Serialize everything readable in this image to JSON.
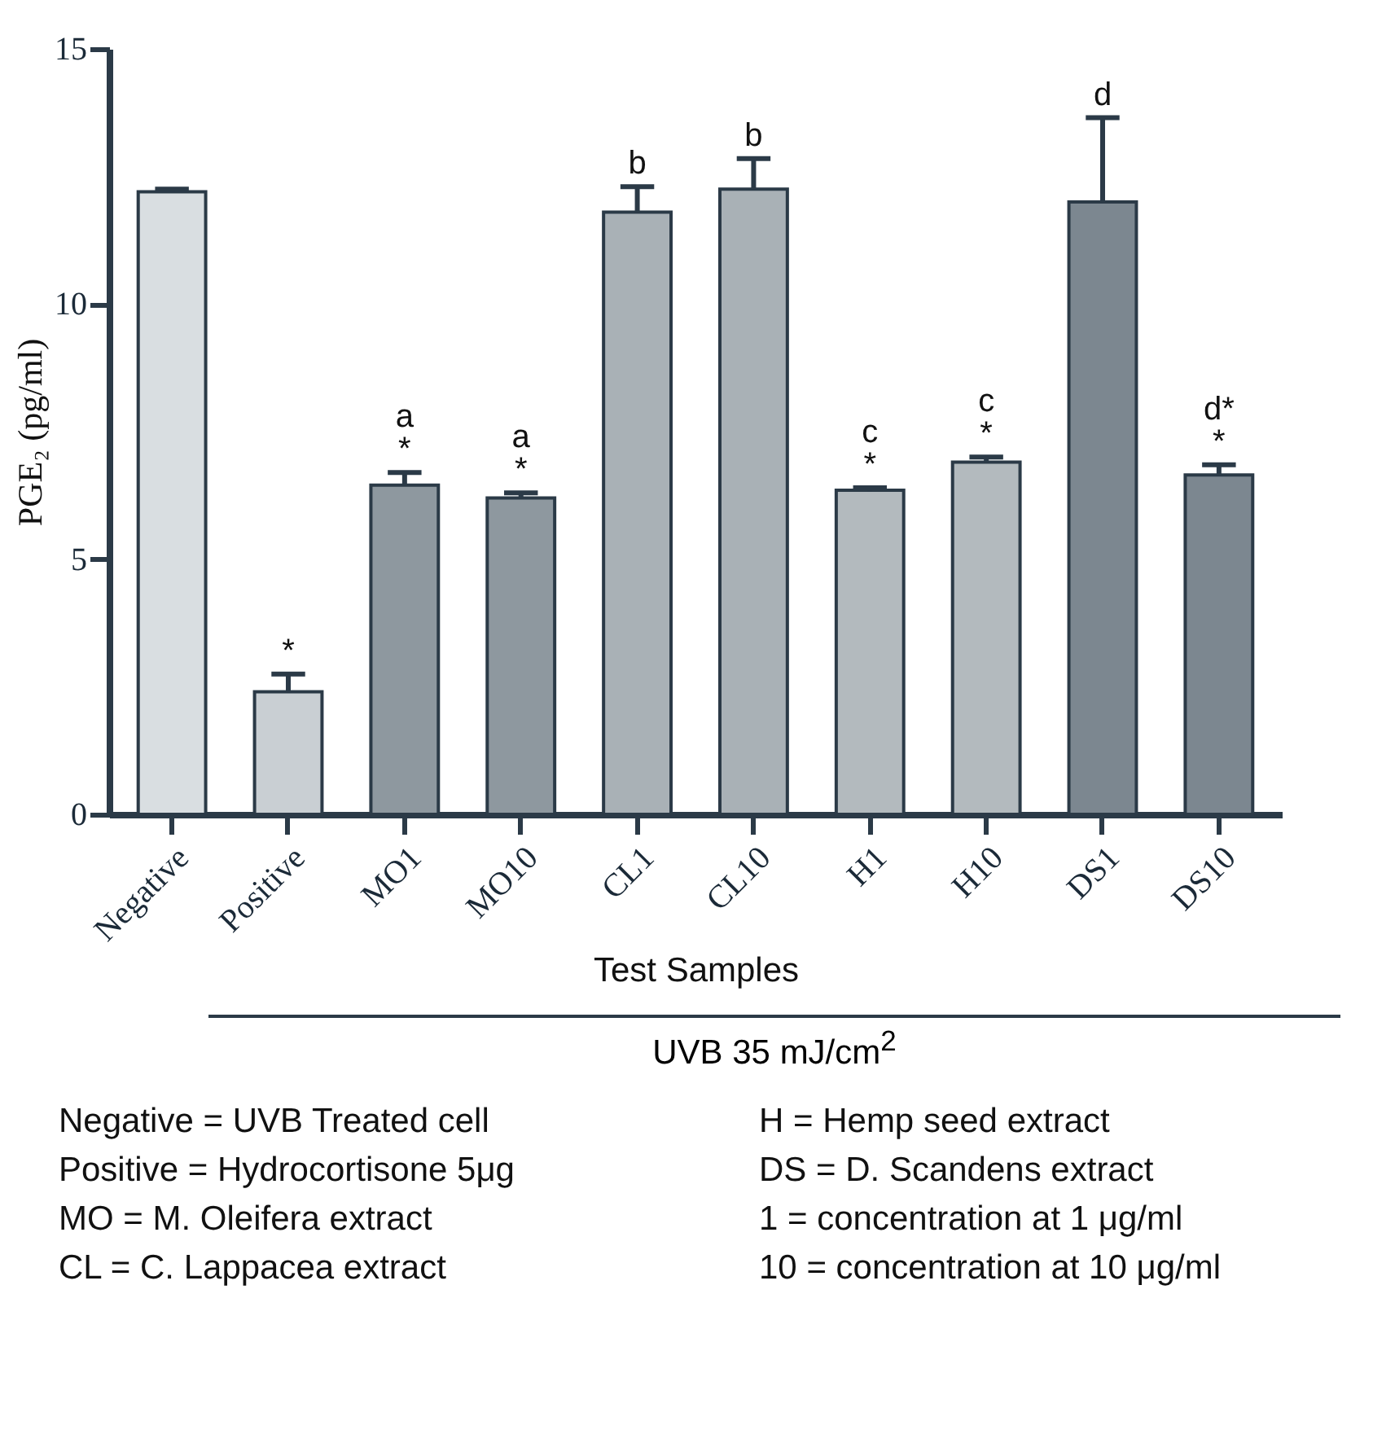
{
  "chart_data": {
    "type": "bar",
    "xlabel": "Test Samples",
    "ylabel": "PGE₂ (pg/ml)",
    "categories": [
      "Negative",
      "Positive",
      "MO1",
      "MO10",
      "CL1",
      "CL10",
      "H1",
      "H10",
      "DS1",
      "DS10"
    ],
    "values": [
      12.2,
      2.4,
      6.45,
      6.2,
      11.8,
      12.25,
      6.35,
      6.9,
      12.0,
      6.65
    ],
    "errors": [
      [
        12.2,
        12.25
      ],
      [
        2.4,
        2.75
      ],
      [
        6.45,
        6.7
      ],
      [
        6.2,
        6.3
      ],
      [
        11.8,
        12.3
      ],
      [
        12.25,
        12.85
      ],
      [
        6.35,
        6.4
      ],
      [
        6.9,
        7.0
      ],
      [
        12.0,
        13.65
      ],
      [
        6.65,
        6.85
      ]
    ],
    "colors": [
      "#d9dee1",
      "#c9cfd3",
      "#8e989f",
      "#8e989f",
      "#a9b1b6",
      "#a9b1b6",
      "#b3babe",
      "#b3babe",
      "#7c8790",
      "#7c8790"
    ],
    "ylim": [
      0,
      15
    ],
    "yticks": [
      0,
      5,
      10,
      15
    ],
    "grid": false,
    "annotations": [
      {
        "text": "*",
        "x": "Positive",
        "y": 2.75
      },
      {
        "text": "*",
        "x": "MO1",
        "y": 6.7
      },
      {
        "text": "a",
        "x": "MO1",
        "y": 6.7
      },
      {
        "text": "*",
        "x": "MO10",
        "y": 6.3
      },
      {
        "text": "a",
        "x": "MO10",
        "y": 6.3
      },
      {
        "text": "b",
        "x": "CL1",
        "y": 12.3
      },
      {
        "text": "b",
        "x": "CL10",
        "y": 12.85
      },
      {
        "text": "*",
        "x": "H1",
        "y": 6.4
      },
      {
        "text": "c",
        "x": "H1",
        "y": 6.4
      },
      {
        "text": "*",
        "x": "H10",
        "y": 7.0
      },
      {
        "text": "c",
        "x": "H10",
        "y": 7.0
      },
      {
        "text": "d",
        "x": "DS1",
        "y": 13.65
      },
      {
        "text": "*",
        "x": "DS10",
        "y": 6.85
      },
      {
        "text": "d*",
        "x": "DS10",
        "y": 6.85
      },
      "UVB 35 mJ/cm$^{2}$",
      "Negative = UVB Treated cell",
      "H = Hemp seed extract",
      "Positive = Hydrocortisone 5μg",
      "DS = D. Scandens extract",
      "MO = M. Oleifera extract",
      "1 = concentration at 1 μg/ml",
      "CL = C. Lappacea extract",
      "10 = concentration at 10 μg/ml"
    ]
  }
}
